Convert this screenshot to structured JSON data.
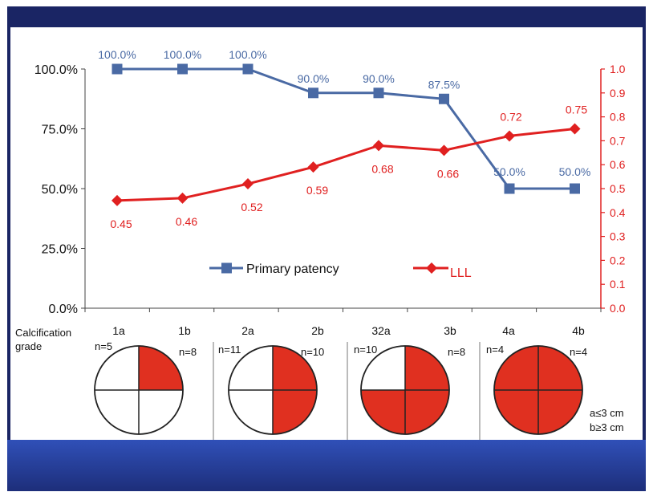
{
  "chart_data": {
    "type": "line",
    "categories": [
      "1a",
      "1b",
      "2a",
      "2b",
      "32a",
      "3b",
      "4a",
      "4b"
    ],
    "n_labels": [
      "n=5",
      "n=8",
      "n=11",
      "n=10",
      "n=10",
      "n=8",
      "n=4",
      "n=4"
    ],
    "row_label": "Calcification\ngrade",
    "series": [
      {
        "name": "Primary patency",
        "axis": "left",
        "color": "#4a6aa4",
        "values": [
          100.0,
          100.0,
          100.0,
          90.0,
          90.0,
          87.5,
          50.0,
          50.0
        ],
        "labels": [
          "100.0%",
          "100.0%",
          "100.0%",
          "90.0%",
          "90.0%",
          "87.5%",
          "50.0%",
          "50.0%"
        ]
      },
      {
        "name": "LLL",
        "axis": "right",
        "color": "#e02020",
        "values": [
          0.45,
          0.46,
          0.52,
          0.59,
          0.68,
          0.66,
          0.72,
          0.75
        ],
        "labels": [
          "0.45",
          "0.46",
          "0.52",
          "0.59",
          "0.68",
          "0.66",
          "0.72",
          "0.75"
        ]
      }
    ],
    "y_left": {
      "ylim": [
        0,
        100
      ],
      "ticks": [
        "0.0%",
        "25.0%",
        "50.0%",
        "75.0%",
        "100.0%"
      ],
      "tick_values": [
        0,
        25,
        50,
        75,
        100
      ]
    },
    "y_right": {
      "ylim": [
        0,
        1.0
      ],
      "ticks": [
        "0.0",
        "0.1",
        "0.2",
        "0.3",
        "0.4",
        "0.5",
        "0.6",
        "0.7",
        "0.8",
        "0.9",
        "1.0"
      ],
      "tick_values": [
        0,
        0.1,
        0.2,
        0.3,
        0.4,
        0.5,
        0.6,
        0.7,
        0.8,
        0.9,
        1.0
      ]
    },
    "legend_placement": "lower-center",
    "grade_circles": {
      "filled_quadrants": [
        [
          "top-right"
        ],
        [
          "top-right",
          "bottom-right"
        ],
        [
          "top-right",
          "bottom-right",
          "bottom-left"
        ],
        [
          "top-left",
          "top-right",
          "bottom-right",
          "bottom-left"
        ]
      ],
      "fill_color": "#e03020"
    },
    "footnotes": [
      "a≤3 cm",
      "b≥3 cm"
    ]
  }
}
